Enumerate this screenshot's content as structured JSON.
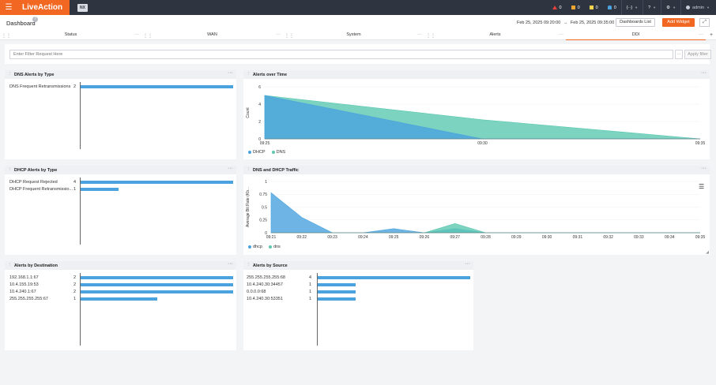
{
  "topbar": {
    "brand": "LiveAction",
    "product_badge": "NX",
    "alerts_red": "0",
    "alerts_orange": "0",
    "alerts_yellow": "0",
    "alerts_blue": "0",
    "code_label": "{··}",
    "help_label": "?",
    "settings_label": "⚙",
    "user": "admin"
  },
  "header": {
    "title": "Dashboard",
    "date_start": "Feb 25, 2025 09:20:00",
    "date_sep": "→",
    "date_end": "Feb 25, 2025 09:35:00",
    "dashboards_list": "Dashboards List",
    "add_widget": "Add Widget"
  },
  "tabs": [
    "Status",
    "WAN",
    "System",
    "Alerts",
    "DDI"
  ],
  "filter": {
    "placeholder": "Enter Filter Request Here",
    "apply": "Apply filter",
    "more": "···"
  },
  "widgets": {
    "dns_alerts_by_type": {
      "title": "DNS Alerts by Type",
      "rows": [
        {
          "label": "DNS Frequent Retransmissions",
          "value": 2
        }
      ],
      "max": 2
    },
    "alerts_over_time": {
      "title": "Alerts over Time",
      "ylabel": "Count",
      "yticks": [
        "6",
        "4",
        "2",
        "0"
      ],
      "xticks": [
        "09:25",
        "09:30",
        "09:35"
      ],
      "legend": [
        "DHCP",
        "DNS"
      ]
    },
    "dhcp_alerts_by_type": {
      "title": "DHCP Alerts by Type",
      "rows": [
        {
          "label": "DHCP Request Rejected",
          "value": 4
        },
        {
          "label": "DHCP Frequent Retransmissio...",
          "value": 1
        }
      ],
      "max": 4
    },
    "dns_dhcp_traffic": {
      "title": "DNS and DHCP Traffic",
      "ylabel": "Average Bit Rate (Kb...",
      "yticks": [
        "1",
        "0.75",
        "0.5",
        "0.25",
        "0"
      ],
      "xticks": [
        "09:21",
        "09:22",
        "09:23",
        "09:24",
        "09:25",
        "09:26",
        "09:27",
        "09:28",
        "09:29",
        "09:30",
        "09:31",
        "09:32",
        "09:33",
        "09:34",
        "09:35"
      ],
      "legend": [
        "dhcp",
        "dns"
      ]
    },
    "alerts_by_destination": {
      "title": "Alerts by Destination",
      "rows": [
        {
          "label": "192.168.1.1:67",
          "value": 2
        },
        {
          "label": "10.4.155.19:53",
          "value": 2
        },
        {
          "label": "10.4.240.1:67",
          "value": 2
        },
        {
          "label": "255.255.255.255:67",
          "value": 1
        }
      ],
      "max": 2
    },
    "alerts_by_source": {
      "title": "Alerts by Source",
      "rows": [
        {
          "label": "255.255.255.255:68",
          "value": 4
        },
        {
          "label": "10.4.240.30:34457",
          "value": 1
        },
        {
          "label": "0.0.0.0:68",
          "value": 1
        },
        {
          "label": "10.4.240.30:53351",
          "value": 1
        }
      ],
      "max": 4
    }
  },
  "chart_data": [
    {
      "type": "area",
      "title": "Alerts over Time",
      "ylabel": "Count",
      "ylim": [
        0,
        6
      ],
      "x": [
        "09:25",
        "09:30",
        "09:35"
      ],
      "series": [
        {
          "name": "DHCP",
          "values": [
            5,
            0,
            0
          ]
        },
        {
          "name": "DNS",
          "values": [
            5,
            2.2,
            0
          ]
        }
      ],
      "colors": [
        "#4aa3df",
        "#5bc8b0"
      ]
    },
    {
      "type": "area",
      "title": "DNS and DHCP Traffic",
      "ylabel": "Average Bit Rate (Kb...",
      "ylim": [
        0,
        1
      ],
      "x": [
        "09:21",
        "09:22",
        "09:23",
        "09:24",
        "09:25",
        "09:26",
        "09:27",
        "09:28",
        "09:29",
        "09:30",
        "09:31",
        "09:32",
        "09:33",
        "09:34",
        "09:35"
      ],
      "series": [
        {
          "name": "dhcp",
          "values": [
            0.78,
            0.3,
            0,
            0,
            0.08,
            0,
            0.08,
            0,
            0,
            0,
            0,
            0,
            0,
            0,
            0
          ]
        },
        {
          "name": "dns",
          "values": [
            0,
            0,
            0,
            0,
            0,
            0,
            0.18,
            0,
            0,
            0,
            0,
            0,
            0,
            0,
            0
          ]
        }
      ],
      "colors": [
        "#4aa3df",
        "#5bc8b0"
      ]
    }
  ],
  "colors": {
    "accent": "#f26722",
    "topbar": "#2e3440",
    "bar": "#4aa3df",
    "dns": "#5bc8b0"
  }
}
